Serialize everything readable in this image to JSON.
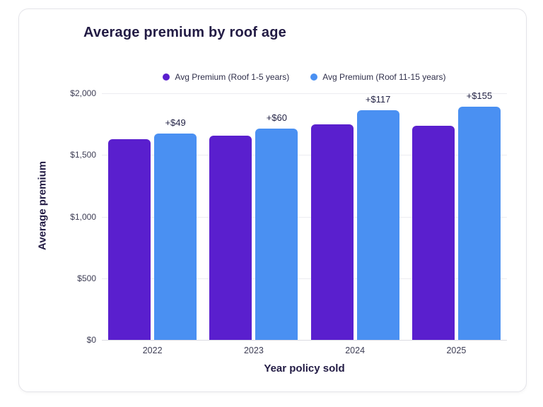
{
  "chart_data": {
    "type": "bar",
    "title": "Average premium by roof age",
    "xlabel": "Year policy sold",
    "ylabel": "Average premium",
    "categories": [
      "2022",
      "2023",
      "2024",
      "2025"
    ],
    "series": [
      {
        "name": "Avg Premium (Roof 1-5 years)",
        "color": "#5a1fce",
        "values": [
          1627,
          1656,
          1745,
          1734
        ]
      },
      {
        "name": "Avg Premium (Roof 11-15 years)",
        "color": "#4a90f2",
        "values": [
          1676,
          1716,
          1862,
          1889
        ]
      }
    ],
    "bar_labels": [
      "+$49",
      "+$60",
      "+$117",
      "+$155"
    ],
    "ylim": [
      0,
      2000
    ],
    "yticks": [
      0,
      500,
      1000,
      1500,
      2000
    ],
    "ytick_labels": [
      "$0",
      "$500",
      "$1,000",
      "$1,500",
      "$2,000"
    ],
    "grid": true,
    "legend_position": "top"
  }
}
